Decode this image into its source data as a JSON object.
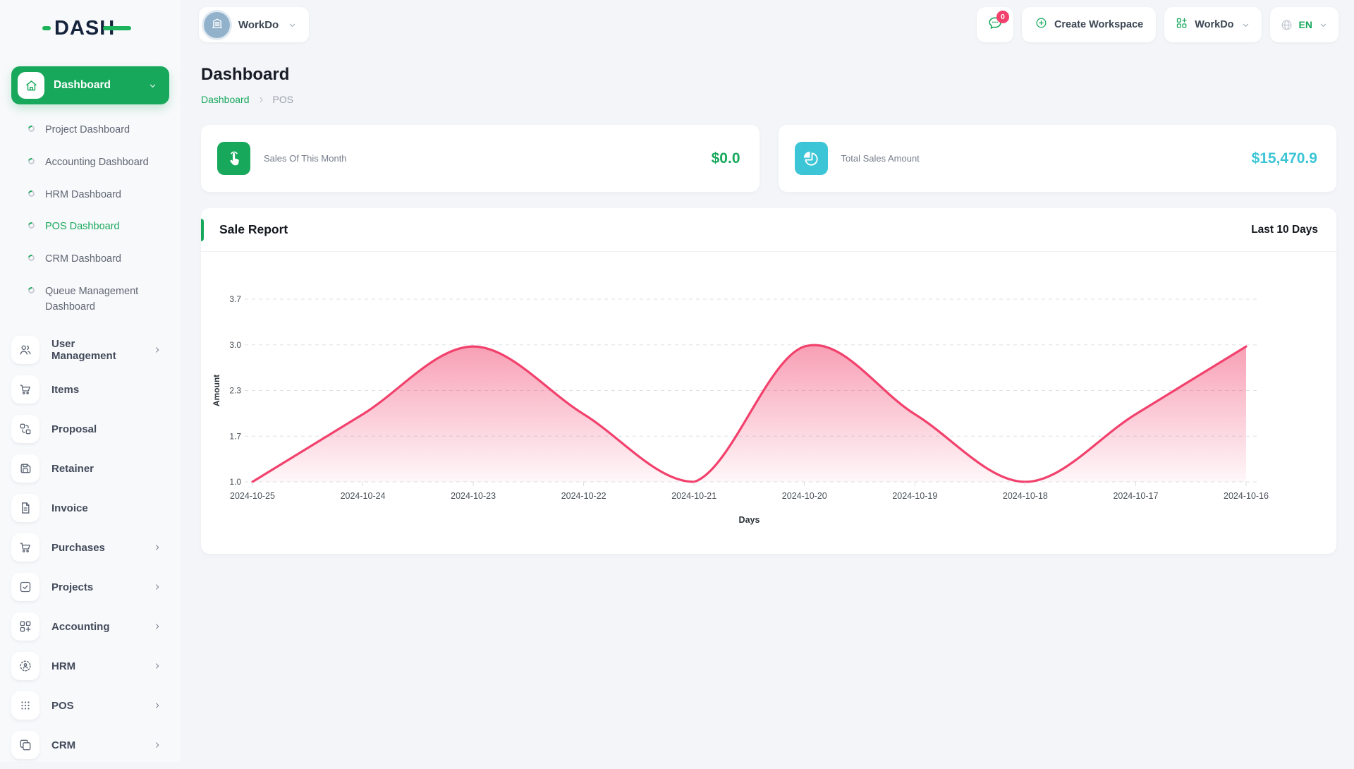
{
  "sidebar": {
    "logo_text": "DASH",
    "dashboard": {
      "label": "Dashboard"
    },
    "dashboard_children": [
      {
        "label": "Project Dashboard",
        "active": false
      },
      {
        "label": "Accounting Dashboard",
        "active": false
      },
      {
        "label": "HRM Dashboard",
        "active": false
      },
      {
        "label": "POS Dashboard",
        "active": true
      },
      {
        "label": "CRM Dashboard",
        "active": false
      },
      {
        "label": "Queue Management Dashboard",
        "active": false
      }
    ],
    "menu": [
      {
        "label": "User Management",
        "icon": "users-icon",
        "chevron": true
      },
      {
        "label": "Items",
        "icon": "cart-icon",
        "chevron": false
      },
      {
        "label": "Proposal",
        "icon": "proposal-icon",
        "chevron": false
      },
      {
        "label": "Retainer",
        "icon": "retainer-icon",
        "chevron": false
      },
      {
        "label": "Invoice",
        "icon": "invoice-icon",
        "chevron": false
      },
      {
        "label": "Purchases",
        "icon": "cart-icon",
        "chevron": true
      },
      {
        "label": "Projects",
        "icon": "projects-icon",
        "chevron": true
      },
      {
        "label": "Accounting",
        "icon": "accounting-icon",
        "chevron": true
      },
      {
        "label": "HRM",
        "icon": "hrm-icon",
        "chevron": true
      },
      {
        "label": "POS",
        "icon": "pos-icon",
        "chevron": true
      },
      {
        "label": "CRM",
        "icon": "crm-icon",
        "chevron": true
      }
    ]
  },
  "header": {
    "workspace": {
      "name": "WorkDo"
    },
    "messages": {
      "badge": "0"
    },
    "create_workspace_label": "Create Workspace",
    "workspace_menu_label": "WorkDo",
    "language": {
      "code": "EN"
    }
  },
  "page": {
    "title": "Dashboard",
    "breadcrumb": {
      "parent": "Dashboard",
      "current": "POS"
    }
  },
  "stats": [
    {
      "label": "Sales Of This Month",
      "value": "$0.0",
      "icon": "tap-icon",
      "accent": "#18a85c"
    },
    {
      "label": "Total Sales Amount",
      "value": "$15,470.9",
      "icon": "pie-chart-icon",
      "accent": "#3cc5d6"
    }
  ],
  "report": {
    "title": "Sale Report",
    "range_label": "Last 10 Days"
  },
  "chart_data": {
    "type": "area",
    "title": "Sale Report",
    "x": [
      "2024-10-25",
      "2024-10-24",
      "2024-10-23",
      "2024-10-22",
      "2024-10-21",
      "2024-10-20",
      "2024-10-19",
      "2024-10-18",
      "2024-10-17",
      "2024-10-16"
    ],
    "series": [
      {
        "name": "Amount",
        "values": [
          1.0,
          2.0,
          3.0,
          2.0,
          1.0,
          3.0,
          2.0,
          1.0,
          2.0,
          3.0
        ]
      }
    ],
    "xlabel": "Days",
    "ylabel": "Amount",
    "ytick_labels_top_to_bottom": [
      "3.7",
      "3.0",
      "2.3",
      "1.7",
      "1.0"
    ],
    "ylim": [
      1.0,
      3.7
    ],
    "grid": true,
    "legend": false,
    "line_color": "#f1416c",
    "fill": "vertical gradient pink to white"
  },
  "colors": {
    "primary_green": "#18a85c",
    "teal": "#3cc5d6",
    "pink": "#f1416c"
  }
}
